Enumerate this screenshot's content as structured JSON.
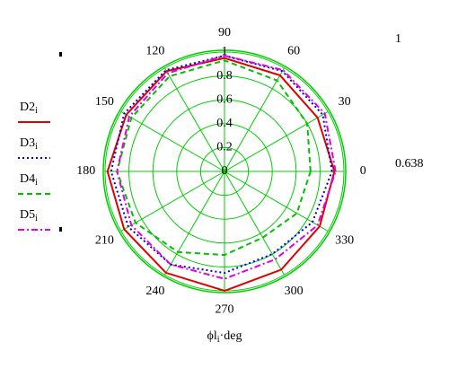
{
  "chart_data": {
    "type": "polar",
    "theta": [
      0,
      30,
      60,
      90,
      120,
      150,
      180,
      210,
      240,
      270,
      300,
      330
    ],
    "rlim": [
      0,
      1
    ],
    "rticks": [
      0,
      0.2,
      0.4,
      0.6,
      0.8,
      1
    ],
    "angle_ticks": [
      0,
      30,
      60,
      90,
      120,
      150,
      180,
      210,
      240,
      270,
      300,
      330
    ],
    "grid_color": "#00cc00",
    "xlabel": {
      "main": "ϕl",
      "sub": "i",
      "rest": "·deg"
    },
    "annotations": [
      "1",
      "0.638"
    ],
    "series": [
      {
        "name": "D2",
        "name_sub": "i",
        "color": "#e00000",
        "style": "solid",
        "values": [
          0.92,
          0.9,
          0.93,
          0.95,
          0.97,
          0.95,
          0.98,
          0.97,
          0.98,
          1.0,
          0.95,
          0.92
        ]
      },
      {
        "name": "D3",
        "name_sub": "i",
        "color": "#0000e0",
        "style": "dotted",
        "values": [
          0.9,
          0.95,
          0.97,
          0.97,
          0.98,
          0.97,
          0.95,
          0.93,
          0.9,
          0.85,
          0.8,
          0.85
        ]
      },
      {
        "name": "D4",
        "name_sub": "i",
        "color": "#00c000",
        "style": "dashed",
        "values": [
          0.72,
          0.8,
          0.88,
          0.93,
          0.92,
          0.9,
          0.9,
          0.86,
          0.78,
          0.7,
          0.64,
          0.7
        ]
      },
      {
        "name": "D5",
        "name_sub": "i",
        "color": "#e000e0",
        "style": "dashdot",
        "values": [
          0.93,
          0.97,
          0.98,
          0.97,
          0.95,
          0.92,
          0.9,
          0.9,
          0.9,
          0.9,
          0.85,
          0.9
        ]
      }
    ]
  }
}
